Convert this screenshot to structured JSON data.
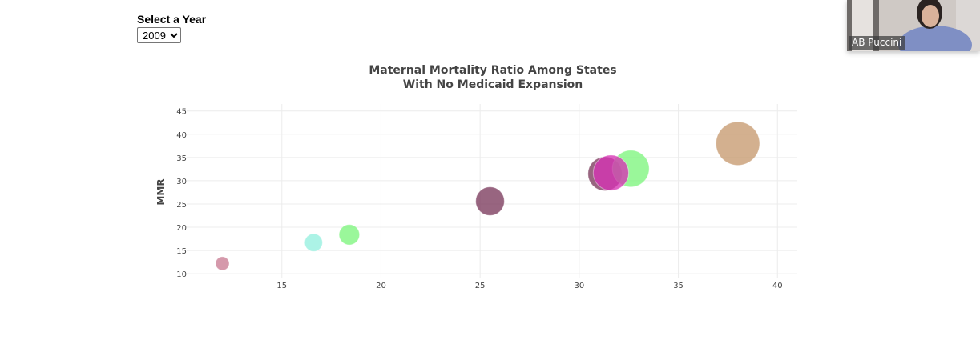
{
  "controls": {
    "year_label": "Select a Year",
    "year_value": "2009",
    "year_options": [
      "2009"
    ]
  },
  "video_call": {
    "participant_name": "AB Puccini"
  },
  "chart_data": {
    "type": "scatter",
    "title_lines": [
      "Maternal Mortality Ratio Among States",
      "With No Medicaid Expansion"
    ],
    "ylabel": "MMR",
    "xlabel": "",
    "xlim": [
      10.2,
      41
    ],
    "ylim": [
      9,
      46.5
    ],
    "xticks": [
      15,
      20,
      25,
      30,
      35,
      40
    ],
    "yticks": [
      10,
      15,
      20,
      25,
      30,
      35,
      40,
      45
    ],
    "grid": true,
    "bubble_size": "relative",
    "points": [
      {
        "x": 12.0,
        "y": 12.2,
        "size": 1.0,
        "color": "#c97c93"
      },
      {
        "x": 16.6,
        "y": 16.7,
        "size": 1.3,
        "color": "#95efdf"
      },
      {
        "x": 18.4,
        "y": 18.4,
        "size": 1.5,
        "color": "#7ef57e"
      },
      {
        "x": 25.5,
        "y": 25.6,
        "size": 2.1,
        "color": "#7b3a5c"
      },
      {
        "x": 31.3,
        "y": 31.5,
        "size": 2.5,
        "color": "#7b3a5c"
      },
      {
        "x": 32.6,
        "y": 32.6,
        "size": 2.7,
        "color": "#7ef57e"
      },
      {
        "x": 31.6,
        "y": 31.7,
        "size": 2.6,
        "color": "#d633b4"
      },
      {
        "x": 38.0,
        "y": 38.0,
        "size": 3.2,
        "color": "#c79a6f"
      }
    ]
  }
}
